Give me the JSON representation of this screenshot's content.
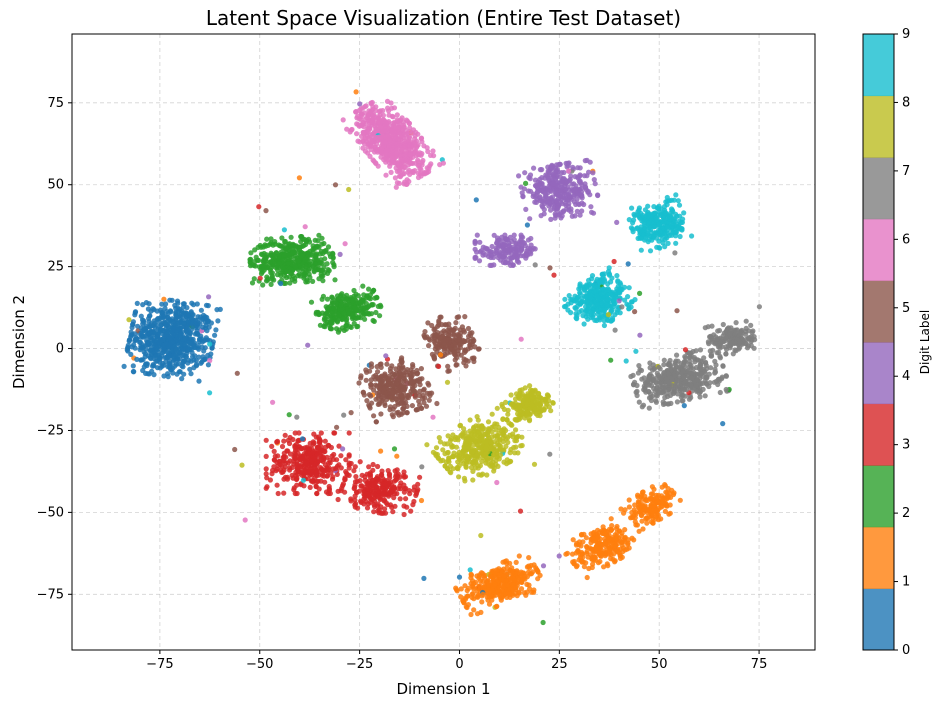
{
  "chart_data": {
    "type": "scatter",
    "title": "Latent Space Visualization (Entire Test Dataset)",
    "xlabel": "Dimension 1",
    "ylabel": "Dimension 2",
    "xlim": [
      -97,
      89
    ],
    "ylim": [
      -92,
      96
    ],
    "xticks": [
      -75,
      -50,
      -25,
      0,
      25,
      50,
      75
    ],
    "yticks": [
      -75,
      -50,
      -25,
      0,
      25,
      50,
      75
    ],
    "xtick_labels": [
      "−75",
      "−50",
      "−25",
      "0",
      "25",
      "50",
      "75"
    ],
    "ytick_labels": [
      "−75",
      "−50",
      "−25",
      "0",
      "25",
      "50",
      "75"
    ],
    "grid": true,
    "colorbar": {
      "label": "Digit Label",
      "ticks": [
        "0",
        "1",
        "2",
        "3",
        "4",
        "5",
        "6",
        "7",
        "8",
        "9"
      ],
      "colors": [
        "#1f77b4",
        "#ff7f0e",
        "#2ca02c",
        "#d62728",
        "#9467bd",
        "#8c564b",
        "#e377c2",
        "#7f7f7f",
        "#bcbd22",
        "#17becf"
      ]
    },
    "series": [
      {
        "name": "0",
        "clusters": [
          {
            "cx": -72,
            "cy": 3,
            "sx": 9,
            "sy": 10,
            "rot": -10,
            "n": 650
          }
        ]
      },
      {
        "name": "1",
        "clusters": [
          {
            "cx": 10,
            "cy": -72,
            "sx": 9,
            "sy": 5,
            "rot": 25,
            "n": 320
          },
          {
            "cx": 36,
            "cy": -60,
            "sx": 8,
            "sy": 5,
            "rot": 35,
            "n": 230
          },
          {
            "cx": 48,
            "cy": -48,
            "sx": 6,
            "sy": 4,
            "rot": 35,
            "n": 160
          }
        ]
      },
      {
        "name": "2",
        "clusters": [
          {
            "cx": -42,
            "cy": 27,
            "sx": 9,
            "sy": 6,
            "rot": 5,
            "n": 420
          },
          {
            "cx": -28,
            "cy": 12,
            "sx": 7,
            "sy": 5,
            "rot": 20,
            "n": 260
          }
        ]
      },
      {
        "name": "3",
        "clusters": [
          {
            "cx": -38,
            "cy": -35,
            "sx": 9,
            "sy": 8,
            "rot": 0,
            "n": 330
          },
          {
            "cx": -20,
            "cy": -43,
            "sx": 8,
            "sy": 6,
            "rot": -15,
            "n": 240
          }
        ]
      },
      {
        "name": "4",
        "clusters": [
          {
            "cx": 25,
            "cy": 48,
            "sx": 8,
            "sy": 7,
            "rot": 10,
            "n": 320
          },
          {
            "cx": 12,
            "cy": 30,
            "sx": 7,
            "sy": 4,
            "rot": 0,
            "n": 160
          }
        ]
      },
      {
        "name": "5",
        "clusters": [
          {
            "cx": -16,
            "cy": -12,
            "sx": 7,
            "sy": 7,
            "rot": 20,
            "n": 300
          },
          {
            "cx": -2,
            "cy": 2,
            "sx": 5,
            "sy": 7,
            "rot": 20,
            "n": 200
          }
        ]
      },
      {
        "name": "6",
        "clusters": [
          {
            "cx": -17,
            "cy": 63,
            "sx": 6,
            "sy": 11,
            "rot": 35,
            "n": 600
          }
        ]
      },
      {
        "name": "7",
        "clusters": [
          {
            "cx": 55,
            "cy": -9,
            "sx": 10,
            "sy": 6,
            "rot": 15,
            "n": 400
          },
          {
            "cx": 68,
            "cy": 3,
            "sx": 5,
            "sy": 4,
            "rot": 10,
            "n": 160
          }
        ]
      },
      {
        "name": "8",
        "clusters": [
          {
            "cx": 5,
            "cy": -30,
            "sx": 9,
            "sy": 7,
            "rot": 35,
            "n": 380
          },
          {
            "cx": 17,
            "cy": -17,
            "sx": 5,
            "sy": 4,
            "rot": 30,
            "n": 180
          }
        ]
      },
      {
        "name": "9",
        "clusters": [
          {
            "cx": 35,
            "cy": 15,
            "sx": 7,
            "sy": 6,
            "rot": 40,
            "n": 330
          },
          {
            "cx": 50,
            "cy": 38,
            "sx": 6,
            "sy": 6,
            "rot": 20,
            "n": 260
          }
        ]
      }
    ]
  }
}
